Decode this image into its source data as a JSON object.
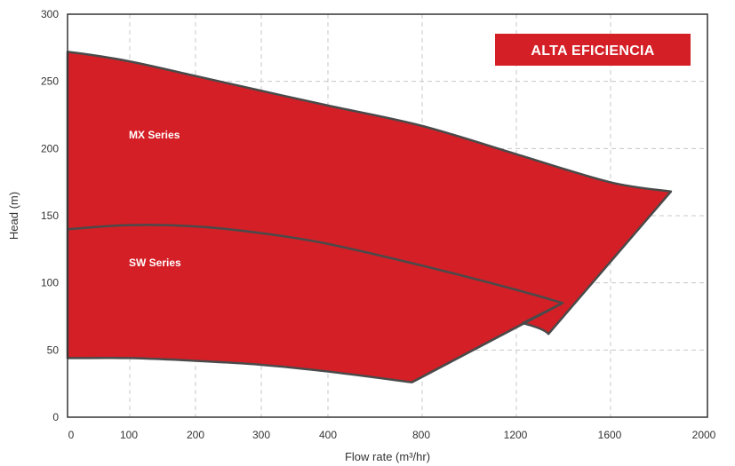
{
  "chart_data": {
    "type": "area",
    "badge": "ALTA EFICIENCIA",
    "xlabel": "Flow rate (m³/hr)",
    "ylabel": "Head (m)",
    "ylim": [
      0,
      300
    ],
    "y_ticks": [
      "0",
      "50",
      "100",
      "150",
      "200",
      "250",
      "300"
    ],
    "x_ticks": [
      "0",
      "100",
      "200",
      "300",
      "400",
      "800",
      "1200",
      "1600",
      "2000"
    ],
    "x_scale": "piecewise linear: 0–400 in steps of 100, then 400–2000 in steps of 400",
    "grid": true,
    "fill_color": "#d41f26",
    "edge_color": "#4a4a4a",
    "badge_color": "#d41f26",
    "series": [
      {
        "name": "MX Series",
        "upper_curve": [
          {
            "x": 0,
            "y": 272
          },
          {
            "x": 100,
            "y": 265
          },
          {
            "x": 200,
            "y": 254
          },
          {
            "x": 300,
            "y": 243
          },
          {
            "x": 400,
            "y": 232
          },
          {
            "x": 800,
            "y": 217
          },
          {
            "x": 1200,
            "y": 196
          },
          {
            "x": 1600,
            "y": 175
          },
          {
            "x": 1860,
            "y": 168
          }
        ],
        "lower_curve": [
          {
            "x": 0,
            "y": 44
          },
          {
            "x": 100,
            "y": 44
          },
          {
            "x": 200,
            "y": 42
          },
          {
            "x": 300,
            "y": 39
          },
          {
            "x": 400,
            "y": 34
          },
          {
            "x": 760,
            "y": 26
          }
        ],
        "right_edge": [
          {
            "x": 1860,
            "y": 168
          },
          {
            "x": 1340,
            "y": 62
          },
          {
            "x": 1300,
            "y": 70
          },
          {
            "x": 1230,
            "y": 70
          }
        ]
      },
      {
        "name": "SW Series",
        "upper_curve": [
          {
            "x": 0,
            "y": 140
          },
          {
            "x": 100,
            "y": 143
          },
          {
            "x": 200,
            "y": 142
          },
          {
            "x": 300,
            "y": 137
          },
          {
            "x": 400,
            "y": 129
          },
          {
            "x": 800,
            "y": 113
          },
          {
            "x": 1200,
            "y": 95
          },
          {
            "x": 1400,
            "y": 85
          }
        ],
        "right_edge": [
          {
            "x": 1400,
            "y": 85
          },
          {
            "x": 760,
            "y": 26
          }
        ]
      }
    ]
  }
}
